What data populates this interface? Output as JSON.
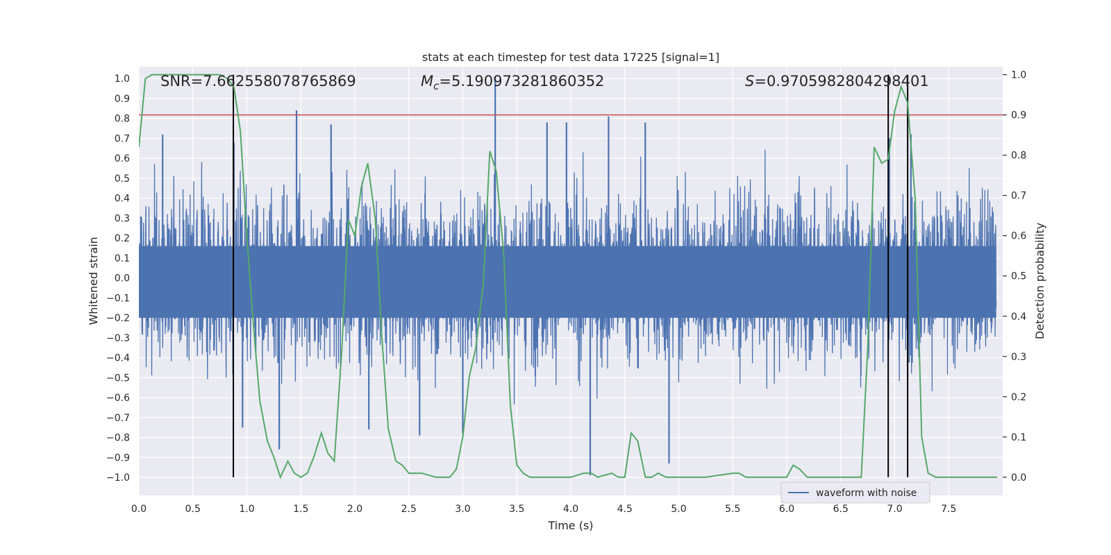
{
  "chart_data": {
    "type": "line",
    "title": "stats at each timestep for test data 17225 [signal=1]",
    "xlabel": "Time (s)",
    "ylabel_left": "Whitened strain",
    "ylabel_right": "Detection probability",
    "xlim": [
      0.0,
      8.0
    ],
    "ylim_left": [
      -1.09,
      1.06
    ],
    "ylim_right": [
      -0.045,
      1.02
    ],
    "x_ticks": [
      "0.0",
      "0.5",
      "1.0",
      "1.5",
      "2.0",
      "2.5",
      "3.0",
      "3.5",
      "4.0",
      "4.5",
      "5.0",
      "5.5",
      "6.0",
      "6.5",
      "7.0",
      "7.5"
    ],
    "x_tick_values": [
      0.0,
      0.5,
      1.0,
      1.5,
      2.0,
      2.5,
      3.0,
      3.5,
      4.0,
      4.5,
      5.0,
      5.5,
      6.0,
      6.5,
      7.0,
      7.5
    ],
    "y_ticks_left": [
      "1.0",
      "0.9",
      "0.8",
      "0.7",
      "0.6",
      "0.5",
      "0.4",
      "0.3",
      "0.2",
      "0.1",
      "0.0",
      "−0.1",
      "−0.2",
      "−0.3",
      "−0.4",
      "−0.5",
      "−0.6",
      "−0.7",
      "−0.8",
      "−0.9",
      "−1.0"
    ],
    "y_tick_values_left": [
      1.0,
      0.9,
      0.8,
      0.7,
      0.6,
      0.5,
      0.4,
      0.3,
      0.2,
      0.1,
      0.0,
      -0.1,
      -0.2,
      -0.3,
      -0.4,
      -0.5,
      -0.6,
      -0.7,
      -0.8,
      -0.9,
      -1.0
    ],
    "y_ticks_right": [
      "1.0",
      "0.9",
      "0.8",
      "0.7",
      "0.6",
      "0.5",
      "0.4",
      "0.3",
      "0.2",
      "0.1",
      "0.0"
    ],
    "y_tick_values_right": [
      1.0,
      0.9,
      0.8,
      0.7,
      0.6,
      0.5,
      0.4,
      0.3,
      0.2,
      0.1,
      0.0
    ],
    "annotations": {
      "snr": "SNR=7.662558078765869",
      "mc_symbol": "M",
      "mc_sub": "c",
      "mc_value": "=5.190973281860352",
      "s_symbol": "S",
      "s_value": "=0.9705982804298401"
    },
    "threshold_right": 0.9,
    "vertical_lines_x": [
      0.875,
      6.94,
      7.12
    ],
    "series": [
      {
        "name": "waveform with noise",
        "axis": "left",
        "color": "#4c72b0",
        "kind": "noise_waveform",
        "spikes": [
          {
            "x": 0.22,
            "y": 0.72
          },
          {
            "x": 0.88,
            "y": 0.68
          },
          {
            "x": 0.96,
            "y": -0.75
          },
          {
            "x": 1.3,
            "y": -0.86
          },
          {
            "x": 1.46,
            "y": 0.84
          },
          {
            "x": 1.78,
            "y": 0.77
          },
          {
            "x": 2.13,
            "y": -0.76
          },
          {
            "x": 2.6,
            "y": -0.79
          },
          {
            "x": 3.0,
            "y": -0.78
          },
          {
            "x": 3.3,
            "y": 1.01
          },
          {
            "x": 3.78,
            "y": 0.78
          },
          {
            "x": 3.96,
            "y": 0.78
          },
          {
            "x": 4.18,
            "y": -0.99
          },
          {
            "x": 4.35,
            "y": 0.81
          },
          {
            "x": 4.69,
            "y": 0.78
          },
          {
            "x": 4.91,
            "y": -0.93
          },
          {
            "x": 6.95,
            "y": 0.7
          },
          {
            "x": 7.15,
            "y": 0.72
          }
        ]
      },
      {
        "name": "detection probability",
        "axis": "right",
        "color": "#55a868",
        "x": [
          0.0,
          0.06,
          0.12,
          0.25,
          0.5,
          0.75,
          0.82,
          0.88,
          0.94,
          1.0,
          1.06,
          1.12,
          1.19,
          1.25,
          1.31,
          1.38,
          1.44,
          1.5,
          1.56,
          1.62,
          1.69,
          1.75,
          1.81,
          1.88,
          1.94,
          2.0,
          2.06,
          2.12,
          2.19,
          2.25,
          2.31,
          2.38,
          2.44,
          2.5,
          2.62,
          2.75,
          2.88,
          2.94,
          3.0,
          3.06,
          3.12,
          3.19,
          3.25,
          3.31,
          3.38,
          3.44,
          3.5,
          3.56,
          3.62,
          3.75,
          3.88,
          4.0,
          4.12,
          4.19,
          4.25,
          4.38,
          4.44,
          4.5,
          4.56,
          4.62,
          4.69,
          4.75,
          4.81,
          4.88,
          5.0,
          5.25,
          5.5,
          5.56,
          5.62,
          5.75,
          6.0,
          6.06,
          6.12,
          6.19,
          6.25,
          6.5,
          6.69,
          6.75,
          6.81,
          6.88,
          6.94,
          7.0,
          7.06,
          7.12,
          7.19,
          7.25,
          7.31,
          7.38,
          7.5,
          7.75,
          7.88,
          7.95
        ],
        "y": [
          0.82,
          0.99,
          1.0,
          1.0,
          1.0,
          1.0,
          0.99,
          0.97,
          0.86,
          0.6,
          0.38,
          0.19,
          0.09,
          0.05,
          0.0,
          0.04,
          0.01,
          0.0,
          0.01,
          0.05,
          0.11,
          0.06,
          0.04,
          0.32,
          0.64,
          0.6,
          0.72,
          0.78,
          0.64,
          0.35,
          0.12,
          0.04,
          0.03,
          0.01,
          0.01,
          0.0,
          0.0,
          0.02,
          0.1,
          0.25,
          0.32,
          0.48,
          0.81,
          0.76,
          0.55,
          0.18,
          0.03,
          0.01,
          0.0,
          0.0,
          0.0,
          0.0,
          0.01,
          0.01,
          0.0,
          0.01,
          0.0,
          0.0,
          0.11,
          0.09,
          0.0,
          0.0,
          0.01,
          0.0,
          0.0,
          0.0,
          0.01,
          0.01,
          0.0,
          0.0,
          0.0,
          0.03,
          0.02,
          0.0,
          0.0,
          0.0,
          0.0,
          0.32,
          0.82,
          0.78,
          0.79,
          0.91,
          0.97,
          0.93,
          0.69,
          0.1,
          0.01,
          0.0,
          0.0,
          0.0,
          0.0,
          0.0
        ]
      },
      {
        "name": "threshold",
        "axis": "right",
        "color": "#c44e52",
        "y_constant": 0.9
      }
    ],
    "legend": {
      "entries": [
        "waveform with noise"
      ],
      "location": "lower-right"
    }
  }
}
